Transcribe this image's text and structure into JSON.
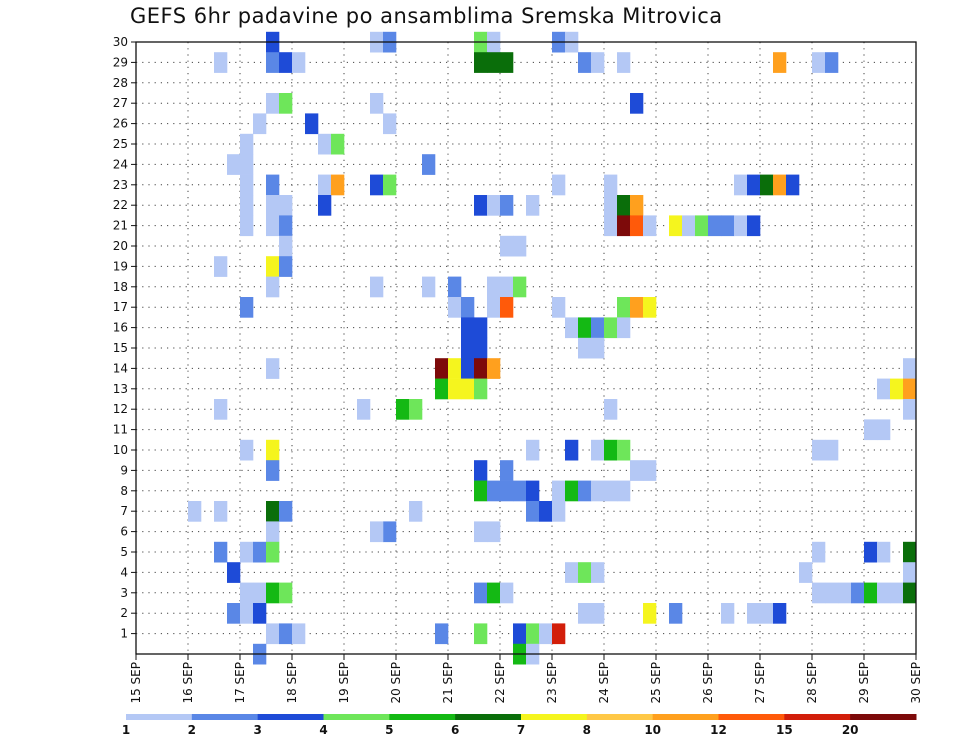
{
  "chart_data": {
    "type": "heatmap",
    "title": "GEFS 6hr padavine po ansamblima Sremska Mitrovica",
    "xlabel": "",
    "ylabel": "",
    "x_ticks": [
      "15 SEP",
      "16 SEP",
      "17 SEP",
      "18 SEP",
      "19 SEP",
      "20 SEP",
      "21 SEP",
      "22 SEP",
      "23 SEP",
      "24 SEP",
      "25 SEP",
      "26 SEP",
      "27 SEP",
      "28 SEP",
      "29 SEP",
      "30 SEP"
    ],
    "x_unit": "6-hour step from 15 SEP",
    "xlim": [
      0,
      60
    ],
    "y_ticks": [
      1,
      2,
      3,
      4,
      5,
      6,
      7,
      8,
      9,
      10,
      11,
      12,
      13,
      14,
      15,
      16,
      17,
      18,
      19,
      20,
      21,
      22,
      23,
      24,
      25,
      26,
      27,
      28,
      29,
      30
    ],
    "ylim": [
      0,
      30
    ],
    "grid": true,
    "legend_position": "bottom",
    "colorbar": {
      "labels": [
        "1",
        "2",
        "3",
        "4",
        "5",
        "6",
        "7",
        "8",
        "10",
        "12",
        "15",
        "20"
      ],
      "colors": [
        "#b4c8f5",
        "#5a87e6",
        "#1e4bd7",
        "#6ee65a",
        "#14b914",
        "#0a6e0a",
        "#f5f51e",
        "#ffc846",
        "#ffa01e",
        "#ff5a0a",
        "#d21e0a",
        "#7d0a0a"
      ]
    },
    "cells": [
      [
        10.5,
        30,
        3
      ],
      [
        18.5,
        30,
        1
      ],
      [
        19.5,
        30,
        2
      ],
      [
        26.5,
        30,
        4
      ],
      [
        27.5,
        30,
        1
      ],
      [
        32.5,
        30,
        2
      ],
      [
        33.5,
        30,
        1
      ],
      [
        6.5,
        29,
        1
      ],
      [
        10.5,
        29,
        2
      ],
      [
        11.5,
        29,
        3
      ],
      [
        12.5,
        29,
        1
      ],
      [
        26.5,
        29,
        6
      ],
      [
        27.5,
        29,
        6
      ],
      [
        28.5,
        29,
        6
      ],
      [
        34.5,
        29,
        2
      ],
      [
        35.5,
        29,
        1
      ],
      [
        37.5,
        29,
        1
      ],
      [
        49.5,
        29,
        9
      ],
      [
        52.5,
        29,
        1
      ],
      [
        53.5,
        29,
        2
      ],
      [
        38.5,
        27,
        3
      ],
      [
        10.5,
        27,
        1
      ],
      [
        11.5,
        27,
        4
      ],
      [
        18.5,
        27,
        1
      ],
      [
        9.5,
        26,
        1
      ],
      [
        13.5,
        26,
        3
      ],
      [
        19.5,
        26,
        1
      ],
      [
        8.5,
        25,
        1
      ],
      [
        14.5,
        25,
        1
      ],
      [
        15.5,
        25,
        4
      ],
      [
        7.5,
        24,
        1
      ],
      [
        8.5,
        24,
        1
      ],
      [
        22.5,
        24,
        2
      ],
      [
        8.5,
        23,
        1
      ],
      [
        10.5,
        23,
        2
      ],
      [
        14.5,
        23,
        1
      ],
      [
        15.5,
        23,
        9
      ],
      [
        18.5,
        23,
        3
      ],
      [
        19.5,
        23,
        4
      ],
      [
        32.5,
        23,
        1
      ],
      [
        36.5,
        23,
        1
      ],
      [
        46.5,
        23,
        1
      ],
      [
        47.5,
        23,
        3
      ],
      [
        48.5,
        23,
        6
      ],
      [
        49.5,
        23,
        9
      ],
      [
        50.5,
        23,
        3
      ],
      [
        8.5,
        22,
        1
      ],
      [
        10.5,
        22,
        1
      ],
      [
        11.5,
        22,
        1
      ],
      [
        14.5,
        22,
        3
      ],
      [
        26.5,
        22,
        3
      ],
      [
        27.5,
        22,
        1
      ],
      [
        28.5,
        22,
        2
      ],
      [
        30.5,
        22,
        1
      ],
      [
        36.5,
        22,
        1
      ],
      [
        37.5,
        22,
        6
      ],
      [
        38.5,
        22,
        9
      ],
      [
        8.5,
        21,
        1
      ],
      [
        10.5,
        21,
        1
      ],
      [
        11.5,
        21,
        2
      ],
      [
        36.5,
        21,
        1
      ],
      [
        37.5,
        21,
        12
      ],
      [
        38.5,
        21,
        10
      ],
      [
        39.5,
        21,
        1
      ],
      [
        41.5,
        21,
        7
      ],
      [
        42.5,
        21,
        1
      ],
      [
        43.5,
        21,
        4
      ],
      [
        44.5,
        21,
        2
      ],
      [
        45.5,
        21,
        2
      ],
      [
        46.5,
        21,
        1
      ],
      [
        47.5,
        21,
        3
      ],
      [
        11.5,
        20,
        1
      ],
      [
        28.5,
        20,
        1
      ],
      [
        29.5,
        20,
        1
      ],
      [
        6.5,
        19,
        1
      ],
      [
        10.5,
        19,
        7
      ],
      [
        11.5,
        19,
        2
      ],
      [
        10.5,
        18,
        1
      ],
      [
        18.5,
        18,
        1
      ],
      [
        22.5,
        18,
        1
      ],
      [
        24.5,
        18,
        2
      ],
      [
        27.5,
        18,
        1
      ],
      [
        28.5,
        18,
        1
      ],
      [
        29.5,
        18,
        4
      ],
      [
        8.5,
        17,
        2
      ],
      [
        24.5,
        17,
        1
      ],
      [
        25.5,
        17,
        2
      ],
      [
        27.5,
        17,
        1
      ],
      [
        28.5,
        17,
        10
      ],
      [
        32.5,
        17,
        1
      ],
      [
        37.5,
        17,
        4
      ],
      [
        38.5,
        17,
        9
      ],
      [
        39.5,
        17,
        7
      ],
      [
        25.5,
        16,
        3
      ],
      [
        26.5,
        16,
        3
      ],
      [
        33.5,
        16,
        1
      ],
      [
        34.5,
        16,
        5
      ],
      [
        35.5,
        16,
        2
      ],
      [
        36.5,
        16,
        4
      ],
      [
        37.5,
        16,
        1
      ],
      [
        25.5,
        15,
        3
      ],
      [
        26.5,
        15,
        3
      ],
      [
        34.5,
        15,
        1
      ],
      [
        35.5,
        15,
        1
      ],
      [
        10.5,
        14,
        1
      ],
      [
        23.5,
        14,
        12
      ],
      [
        24.5,
        14,
        7
      ],
      [
        25.5,
        14,
        3
      ],
      [
        26.5,
        14,
        12
      ],
      [
        27.5,
        14,
        9
      ],
      [
        59.5,
        14,
        1
      ],
      [
        23.5,
        13,
        5
      ],
      [
        24.5,
        13,
        7
      ],
      [
        25.5,
        13,
        7
      ],
      [
        26.5,
        13,
        4
      ],
      [
        57.5,
        13,
        1
      ],
      [
        58.5,
        13,
        7
      ],
      [
        59.5,
        13,
        9
      ],
      [
        6.5,
        12,
        1
      ],
      [
        17.5,
        12,
        1
      ],
      [
        20.5,
        12,
        5
      ],
      [
        21.5,
        12,
        4
      ],
      [
        36.5,
        12,
        1
      ],
      [
        59.5,
        12,
        1
      ],
      [
        56.5,
        11,
        1
      ],
      [
        57.5,
        11,
        1
      ],
      [
        8.5,
        10,
        1
      ],
      [
        10.5,
        10,
        7
      ],
      [
        30.5,
        10,
        1
      ],
      [
        33.5,
        10,
        3
      ],
      [
        35.5,
        10,
        1
      ],
      [
        36.5,
        10,
        5
      ],
      [
        37.5,
        10,
        4
      ],
      [
        52.5,
        10,
        1
      ],
      [
        53.5,
        10,
        1
      ],
      [
        10.5,
        9,
        2
      ],
      [
        26.5,
        9,
        3
      ],
      [
        28.5,
        9,
        2
      ],
      [
        38.5,
        9,
        1
      ],
      [
        39.5,
        9,
        1
      ],
      [
        26.5,
        8,
        5
      ],
      [
        27.5,
        8,
        2
      ],
      [
        28.5,
        8,
        2
      ],
      [
        29.5,
        8,
        2
      ],
      [
        30.5,
        8,
        3
      ],
      [
        32.5,
        8,
        1
      ],
      [
        33.5,
        8,
        5
      ],
      [
        34.5,
        8,
        2
      ],
      [
        35.5,
        8,
        1
      ],
      [
        36.5,
        8,
        1
      ],
      [
        37.5,
        8,
        1
      ],
      [
        4.5,
        7,
        1
      ],
      [
        6.5,
        7,
        1
      ],
      [
        10.5,
        7,
        6
      ],
      [
        11.5,
        7,
        2
      ],
      [
        21.5,
        7,
        1
      ],
      [
        30.5,
        7,
        2
      ],
      [
        31.5,
        7,
        3
      ],
      [
        32.5,
        7,
        1
      ],
      [
        10.5,
        6,
        1
      ],
      [
        19.5,
        6,
        2
      ],
      [
        18.5,
        6,
        1
      ],
      [
        26.5,
        6,
        1
      ],
      [
        27.5,
        6,
        1
      ],
      [
        6.5,
        5,
        2
      ],
      [
        8.5,
        5,
        1
      ],
      [
        9.5,
        5,
        2
      ],
      [
        10.5,
        5,
        4
      ],
      [
        52.5,
        5,
        1
      ],
      [
        56.5,
        5,
        3
      ],
      [
        57.5,
        5,
        1
      ],
      [
        59.5,
        5,
        6
      ],
      [
        7.5,
        4,
        3
      ],
      [
        33.5,
        4,
        1
      ],
      [
        34.5,
        4,
        4
      ],
      [
        35.5,
        4,
        1
      ],
      [
        51.5,
        4,
        1
      ],
      [
        59.5,
        4,
        1
      ],
      [
        8.5,
        3,
        1
      ],
      [
        9.5,
        3,
        1
      ],
      [
        10.5,
        3,
        5
      ],
      [
        11.5,
        3,
        4
      ],
      [
        26.5,
        3,
        2
      ],
      [
        27.5,
        3,
        5
      ],
      [
        28.5,
        3,
        1
      ],
      [
        52.5,
        3,
        1
      ],
      [
        53.5,
        3,
        1
      ],
      [
        54.5,
        3,
        1
      ],
      [
        55.5,
        3,
        2
      ],
      [
        56.5,
        3,
        5
      ],
      [
        57.5,
        3,
        1
      ],
      [
        58.5,
        3,
        1
      ],
      [
        59.5,
        3,
        6
      ],
      [
        7.5,
        2,
        2
      ],
      [
        8.5,
        2,
        1
      ],
      [
        9.5,
        2,
        3
      ],
      [
        34.5,
        2,
        1
      ],
      [
        35.5,
        2,
        1
      ],
      [
        39.5,
        2,
        7
      ],
      [
        41.5,
        2,
        2
      ],
      [
        45.5,
        2,
        1
      ],
      [
        47.5,
        2,
        1
      ],
      [
        48.5,
        2,
        1
      ],
      [
        49.5,
        2,
        3
      ],
      [
        10.5,
        1,
        1
      ],
      [
        11.5,
        1,
        2
      ],
      [
        12.5,
        1,
        1
      ],
      [
        23.5,
        1,
        2
      ],
      [
        26.5,
        1,
        4
      ],
      [
        29.5,
        1,
        3
      ],
      [
        30.5,
        1,
        4
      ],
      [
        31.5,
        1,
        1
      ],
      [
        32.5,
        1,
        11
      ],
      [
        9.5,
        0,
        2
      ],
      [
        29.5,
        0,
        5
      ],
      [
        30.5,
        0,
        1
      ]
    ]
  }
}
